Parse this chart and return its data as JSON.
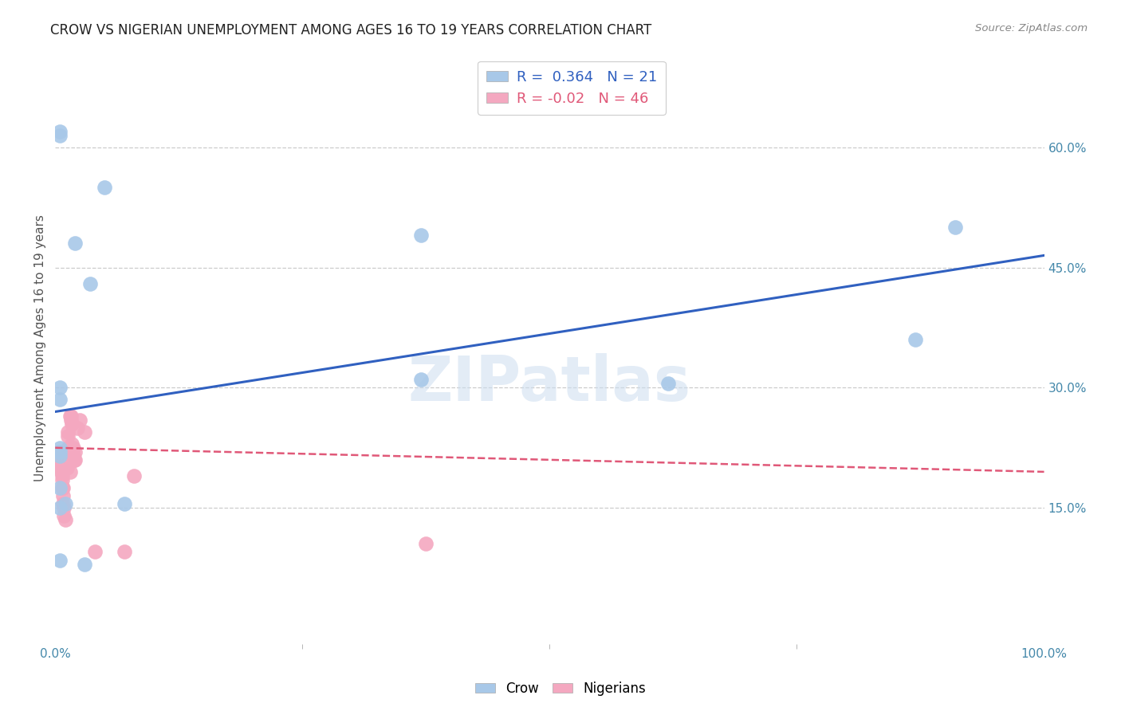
{
  "title": "CROW VS NIGERIAN UNEMPLOYMENT AMONG AGES 16 TO 19 YEARS CORRELATION CHART",
  "source": "Source: ZipAtlas.com",
  "ylabel": "Unemployment Among Ages 16 to 19 years",
  "xlim": [
    0.0,
    1.0
  ],
  "ylim": [
    -0.02,
    0.72
  ],
  "ytick_vals": [
    0.15,
    0.3,
    0.45,
    0.6
  ],
  "xtick_labels_vals": [
    0.0,
    1.0
  ],
  "xtick_minor_vals": [
    0.25,
    0.5,
    0.75
  ],
  "crow_R": 0.364,
  "crow_N": 21,
  "nigerian_R": -0.02,
  "nigerian_N": 46,
  "crow_color": "#a8c8e8",
  "nigerian_color": "#f4a8c0",
  "crow_line_color": "#3060c0",
  "nigerian_line_color": "#e05878",
  "crow_points_x": [
    0.02,
    0.035,
    0.005,
    0.005,
    0.005,
    0.005,
    0.005,
    0.005,
    0.005,
    0.005,
    0.01,
    0.005,
    0.005,
    0.03,
    0.07,
    0.05,
    0.37,
    0.37,
    0.62,
    0.87,
    0.91
  ],
  "crow_points_y": [
    0.48,
    0.43,
    0.62,
    0.615,
    0.3,
    0.285,
    0.225,
    0.215,
    0.22,
    0.175,
    0.155,
    0.15,
    0.085,
    0.08,
    0.155,
    0.55,
    0.31,
    0.49,
    0.305,
    0.36,
    0.5
  ],
  "nigerian_points_x": [
    0.003,
    0.003,
    0.003,
    0.004,
    0.004,
    0.005,
    0.005,
    0.005,
    0.005,
    0.006,
    0.006,
    0.007,
    0.007,
    0.007,
    0.008,
    0.008,
    0.008,
    0.009,
    0.009,
    0.01,
    0.01,
    0.01,
    0.012,
    0.012,
    0.013,
    0.013,
    0.013,
    0.015,
    0.015,
    0.015,
    0.016,
    0.016,
    0.017,
    0.017,
    0.018,
    0.018,
    0.019,
    0.02,
    0.02,
    0.022,
    0.025,
    0.03,
    0.04,
    0.07,
    0.08,
    0.375
  ],
  "nigerian_points_y": [
    0.215,
    0.22,
    0.21,
    0.205,
    0.215,
    0.22,
    0.22,
    0.21,
    0.2,
    0.2,
    0.195,
    0.19,
    0.185,
    0.175,
    0.175,
    0.165,
    0.155,
    0.15,
    0.14,
    0.135,
    0.22,
    0.215,
    0.21,
    0.2,
    0.245,
    0.24,
    0.225,
    0.225,
    0.195,
    0.265,
    0.265,
    0.26,
    0.255,
    0.23,
    0.225,
    0.215,
    0.21,
    0.22,
    0.21,
    0.25,
    0.26,
    0.245,
    0.095,
    0.095,
    0.19,
    0.105
  ],
  "crow_trend_x": [
    0.0,
    1.0
  ],
  "crow_trend_y": [
    0.27,
    0.465
  ],
  "nigerian_trend_x": [
    0.0,
    1.0
  ],
  "nigerian_trend_y": [
    0.225,
    0.195
  ],
  "background_color": "#ffffff",
  "grid_color": "#cccccc"
}
